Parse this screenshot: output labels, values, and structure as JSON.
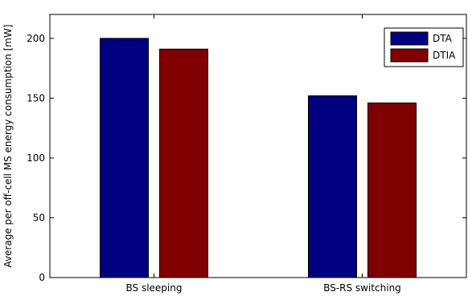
{
  "chart_data": {
    "type": "bar",
    "categories": [
      "BS sleeping",
      "BS-RS switching"
    ],
    "series": [
      {
        "name": "DTA",
        "values": [
          200,
          152
        ],
        "color": "#000080"
      },
      {
        "name": "DTIA",
        "values": [
          191,
          146
        ],
        "color": "#800000"
      }
    ],
    "title": "",
    "xlabel": "",
    "ylabel": "Average per off-cell MS energy consumption [mW]",
    "ylim": [
      0,
      220
    ],
    "yticks": [
      0,
      50,
      100,
      150,
      200
    ],
    "grid": false,
    "legend_position": "top-right"
  }
}
